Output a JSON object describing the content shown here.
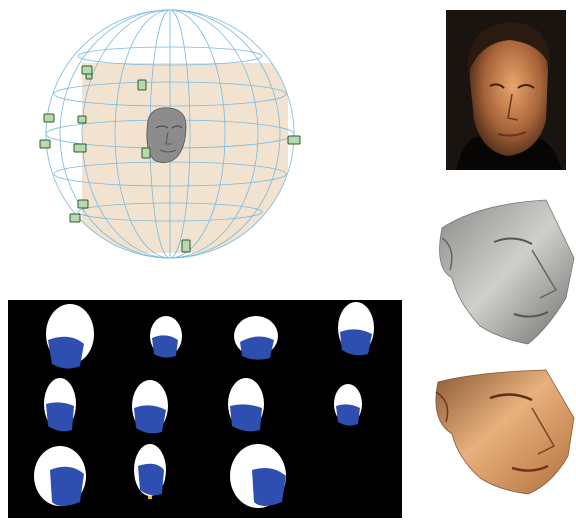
{
  "figure": {
    "panels": [
      {
        "id": "camera-sphere",
        "kind": "wireframe sphere with camera rig and face model",
        "camera_count": 12
      },
      {
        "id": "input-photo",
        "kind": "photograph of face"
      },
      {
        "id": "shaded-reconstruction",
        "kind": "gray shaded 3D face"
      },
      {
        "id": "textured-reconstruction",
        "kind": "textured 3D face"
      },
      {
        "id": "silhouette-grid",
        "kind": "head silhouettes",
        "silhouette_count": 11
      }
    ],
    "colors": {
      "wireframe": "#79b9e0",
      "backdrop": "#f1e3cf",
      "silhouette_white": "#ffffff",
      "silhouette_blue": "#2e4fb0",
      "skin_dark": "#8a5a36",
      "background_black": "#000000"
    }
  }
}
